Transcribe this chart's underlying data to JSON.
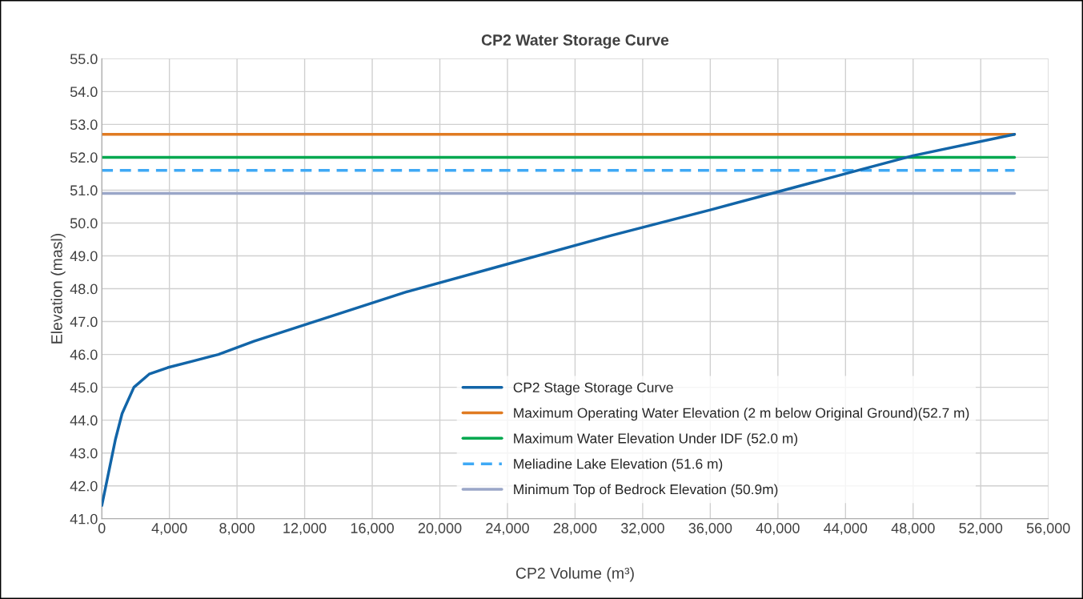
{
  "chart_data": {
    "type": "line",
    "title": "CP2 Water Storage Curve",
    "xlabel": "CP2 Volume (m³)",
    "ylabel": "Elevation (masl)",
    "xlim": [
      0,
      56000
    ],
    "xticks": [
      0,
      {
        "value": 4000,
        "label": "4,000"
      },
      {
        "value": 8000,
        "label": "8,000"
      },
      {
        "value": 12000,
        "label": "12,000"
      },
      {
        "value": 16000,
        "label": "16,000"
      },
      {
        "value": 20000,
        "label": "20,000"
      },
      {
        "value": 24000,
        "label": "24,000"
      },
      {
        "value": 28000,
        "label": "28,000"
      },
      {
        "value": 32000,
        "label": "32,000"
      },
      {
        "value": 36000,
        "label": "36,000"
      },
      {
        "value": 40000,
        "label": "40,000"
      },
      {
        "value": 44000,
        "label": "44,000"
      },
      {
        "value": 48000,
        "label": "48,000"
      },
      {
        "value": 52000,
        "label": "52,000"
      },
      {
        "value": 56000,
        "label": "56,000"
      }
    ],
    "ylim": [
      41,
      55
    ],
    "yticks": [
      {
        "value": 41,
        "label": "41.0"
      },
      {
        "value": 42,
        "label": "42.0"
      },
      {
        "value": 43,
        "label": "43.0"
      },
      {
        "value": 44,
        "label": "44.0"
      },
      {
        "value": 45,
        "label": "45.0"
      },
      {
        "value": 46,
        "label": "46.0"
      },
      {
        "value": 47,
        "label": "47.0"
      },
      {
        "value": 48,
        "label": "48.0"
      },
      {
        "value": 49,
        "label": "49.0"
      },
      {
        "value": 50,
        "label": "50.0"
      },
      {
        "value": 51,
        "label": "51.0"
      },
      {
        "value": 52,
        "label": "52.0"
      },
      {
        "value": 53,
        "label": "53.0"
      },
      {
        "value": 54,
        "label": "54.0"
      },
      {
        "value": 55,
        "label": "55.0"
      }
    ],
    "grid": true,
    "legend": "bottom right",
    "marker": "none",
    "series": [
      {
        "name": "CP2 Stage Storage Curve",
        "color": "#1265a8",
        "x": [
          0,
          400,
          800,
          1200,
          1900,
          2800,
          3900,
          5400,
          6900,
          9000,
          12000,
          18000,
          24000,
          30000,
          36000,
          40000,
          44000,
          48000,
          54000
        ],
        "values": [
          41.4,
          42.4,
          43.4,
          44.2,
          45.0,
          45.4,
          45.6,
          45.8,
          46.0,
          46.4,
          46.9,
          47.9,
          48.75,
          49.6,
          50.4,
          50.95,
          51.5,
          52.05,
          52.7
        ]
      },
      {
        "name": "Maximum Operating Water Elevation (2 m below Original Ground)(52.7 m)",
        "color": "#e07b22",
        "x": [
          0,
          54000
        ],
        "values": [
          52.7,
          52.7
        ]
      },
      {
        "name": "Maximum Water Elevation Under IDF (52.0 m)",
        "color": "#00a84f",
        "x": [
          0,
          54000
        ],
        "values": [
          52.0,
          52.0
        ]
      },
      {
        "name": "Meliadine Lake Elevation (51.6 m)",
        "color": "#3fa9f5",
        "line_style": "dashed",
        "x": [
          0,
          54000
        ],
        "values": [
          51.6,
          51.6
        ]
      },
      {
        "name": "Minimum Top of Bedrock Elevation (50.9m)",
        "color": "#9aa6c8",
        "x": [
          0,
          54000
        ],
        "values": [
          50.9,
          50.9
        ]
      }
    ]
  }
}
